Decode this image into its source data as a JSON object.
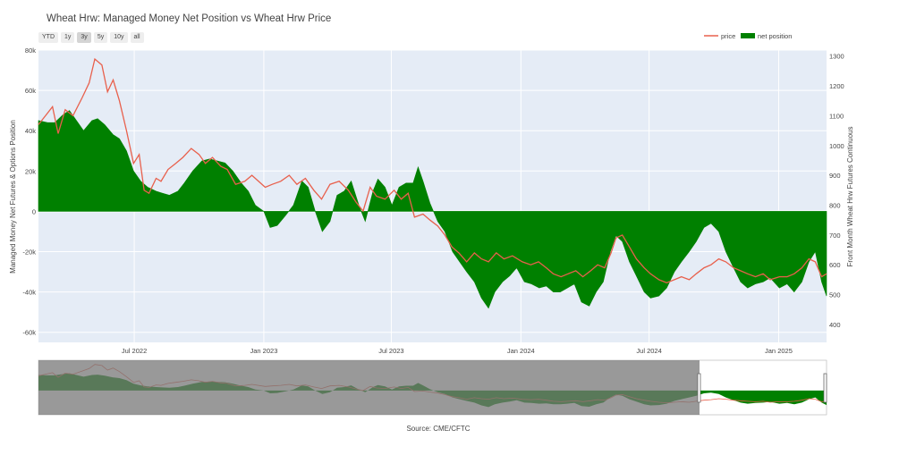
{
  "title": "Wheat Hrw: Managed Money Net Position vs Wheat Hrw Price",
  "range_buttons": [
    {
      "label": "YTD",
      "active": false
    },
    {
      "label": "1y",
      "active": false
    },
    {
      "label": "3y",
      "active": true
    },
    {
      "label": "5y",
      "active": false
    },
    {
      "label": "10y",
      "active": false
    },
    {
      "label": "all",
      "active": false
    }
  ],
  "source": "Source: CME/CFTC",
  "colors": {
    "price": "#e8604c",
    "net_position": "#008000",
    "plot_bg": "#e5ecf6"
  },
  "chart_data": {
    "type": "area",
    "title": "Wheat Hrw: Managed Money Net Position vs Wheat Hrw Price",
    "x_range": [
      "2022-02-15",
      "2025-03-10"
    ],
    "x_ticks": [
      {
        "date": "2022-07-01",
        "label": "Jul 2022"
      },
      {
        "date": "2023-01-01",
        "label": "Jan 2023"
      },
      {
        "date": "2023-07-01",
        "label": "Jul 2023"
      },
      {
        "date": "2024-01-01",
        "label": "Jan 2024"
      },
      {
        "date": "2024-07-01",
        "label": "Jul 2024"
      },
      {
        "date": "2025-01-01",
        "label": "Jan 2025"
      }
    ],
    "y_left": {
      "label": "Managed Money Net Futures & Options Position",
      "range": [
        -65000,
        80000
      ],
      "ticks": [
        {
          "v": 80000,
          "label": "80k"
        },
        {
          "v": 60000,
          "label": "60k"
        },
        {
          "v": 40000,
          "label": "40k"
        },
        {
          "v": 20000,
          "label": "20k"
        },
        {
          "v": 0,
          "label": "0"
        },
        {
          "v": -20000,
          "label": "-20k"
        },
        {
          "v": -40000,
          "label": "-40k"
        },
        {
          "v": -60000,
          "label": "-60k"
        }
      ]
    },
    "y_right": {
      "label": "Front Month Wheat Hrw Futures Continuous",
      "range": [
        340,
        1320
      ],
      "ticks": [
        {
          "v": 1300,
          "label": "1300"
        },
        {
          "v": 1200,
          "label": "1200"
        },
        {
          "v": 1100,
          "label": "1100"
        },
        {
          "v": 1000,
          "label": "1000"
        },
        {
          "v": 900,
          "label": "900"
        },
        {
          "v": 800,
          "label": "800"
        },
        {
          "v": 700,
          "label": "700"
        },
        {
          "v": 600,
          "label": "600"
        },
        {
          "v": 500,
          "label": "500"
        },
        {
          "v": 400,
          "label": "400"
        }
      ]
    },
    "series": [
      {
        "name": "price",
        "axis": "right",
        "points": [
          [
            "2022-02-15",
            1070
          ],
          [
            "2022-02-25",
            1100
          ],
          [
            "2022-03-07",
            1130
          ],
          [
            "2022-03-15",
            1040
          ],
          [
            "2022-03-25",
            1120
          ],
          [
            "2022-04-05",
            1100
          ],
          [
            "2022-04-18",
            1160
          ],
          [
            "2022-04-28",
            1210
          ],
          [
            "2022-05-06",
            1290
          ],
          [
            "2022-05-16",
            1270
          ],
          [
            "2022-05-24",
            1180
          ],
          [
            "2022-06-01",
            1220
          ],
          [
            "2022-06-10",
            1150
          ],
          [
            "2022-06-20",
            1050
          ],
          [
            "2022-06-30",
            940
          ],
          [
            "2022-07-08",
            970
          ],
          [
            "2022-07-15",
            850
          ],
          [
            "2022-07-22",
            840
          ],
          [
            "2022-08-01",
            890
          ],
          [
            "2022-08-08",
            880
          ],
          [
            "2022-08-18",
            920
          ],
          [
            "2022-08-29",
            940
          ],
          [
            "2022-09-08",
            960
          ],
          [
            "2022-09-20",
            990
          ],
          [
            "2022-10-01",
            970
          ],
          [
            "2022-10-10",
            940
          ],
          [
            "2022-10-20",
            960
          ],
          [
            "2022-11-01",
            930
          ],
          [
            "2022-11-10",
            920
          ],
          [
            "2022-11-22",
            870
          ],
          [
            "2022-12-05",
            880
          ],
          [
            "2022-12-15",
            900
          ],
          [
            "2023-01-03",
            860
          ],
          [
            "2023-01-13",
            870
          ],
          [
            "2023-01-25",
            880
          ],
          [
            "2023-02-06",
            900
          ],
          [
            "2023-02-17",
            870
          ],
          [
            "2023-03-01",
            890
          ],
          [
            "2023-03-13",
            850
          ],
          [
            "2023-03-24",
            820
          ],
          [
            "2023-04-05",
            870
          ],
          [
            "2023-04-18",
            880
          ],
          [
            "2023-05-01",
            850
          ],
          [
            "2023-05-12",
            810
          ],
          [
            "2023-05-22",
            780
          ],
          [
            "2023-06-01",
            860
          ],
          [
            "2023-06-10",
            830
          ],
          [
            "2023-06-22",
            820
          ],
          [
            "2023-07-05",
            850
          ],
          [
            "2023-07-15",
            820
          ],
          [
            "2023-07-25",
            840
          ],
          [
            "2023-08-03",
            760
          ],
          [
            "2023-08-15",
            770
          ],
          [
            "2023-08-25",
            750
          ],
          [
            "2023-09-05",
            730
          ],
          [
            "2023-09-15",
            700
          ],
          [
            "2023-09-25",
            660
          ],
          [
            "2023-10-05",
            640
          ],
          [
            "2023-10-16",
            610
          ],
          [
            "2023-10-27",
            640
          ],
          [
            "2023-11-06",
            620
          ],
          [
            "2023-11-16",
            610
          ],
          [
            "2023-11-27",
            640
          ],
          [
            "2023-12-08",
            620
          ],
          [
            "2023-12-20",
            630
          ],
          [
            "2024-01-03",
            610
          ],
          [
            "2024-01-15",
            600
          ],
          [
            "2024-01-26",
            610
          ],
          [
            "2024-02-06",
            590
          ],
          [
            "2024-02-16",
            570
          ],
          [
            "2024-02-27",
            560
          ],
          [
            "2024-03-08",
            570
          ],
          [
            "2024-03-19",
            580
          ],
          [
            "2024-03-29",
            560
          ],
          [
            "2024-04-09",
            580
          ],
          [
            "2024-04-19",
            600
          ],
          [
            "2024-04-29",
            590
          ],
          [
            "2024-05-08",
            640
          ],
          [
            "2024-05-15",
            690
          ],
          [
            "2024-05-24",
            700
          ],
          [
            "2024-06-03",
            660
          ],
          [
            "2024-06-13",
            620
          ],
          [
            "2024-06-24",
            590
          ],
          [
            "2024-07-03",
            570
          ],
          [
            "2024-07-15",
            550
          ],
          [
            "2024-07-26",
            540
          ],
          [
            "2024-08-06",
            550
          ],
          [
            "2024-08-16",
            560
          ],
          [
            "2024-08-27",
            550
          ],
          [
            "2024-09-06",
            570
          ],
          [
            "2024-09-17",
            590
          ],
          [
            "2024-09-27",
            600
          ],
          [
            "2024-10-08",
            620
          ],
          [
            "2024-10-18",
            610
          ],
          [
            "2024-10-29",
            590
          ],
          [
            "2024-11-08",
            580
          ],
          [
            "2024-11-18",
            570
          ],
          [
            "2024-11-29",
            560
          ],
          [
            "2024-12-10",
            570
          ],
          [
            "2024-12-20",
            550
          ],
          [
            "2025-01-02",
            560
          ],
          [
            "2025-01-13",
            560
          ],
          [
            "2025-01-23",
            570
          ],
          [
            "2025-02-03",
            590
          ],
          [
            "2025-02-13",
            620
          ],
          [
            "2025-02-22",
            610
          ],
          [
            "2025-03-03",
            560
          ],
          [
            "2025-03-10",
            570
          ]
        ]
      },
      {
        "name": "net position",
        "axis": "left",
        "points": [
          [
            "2022-02-15",
            45000
          ],
          [
            "2022-02-28",
            44000
          ],
          [
            "2022-03-10",
            44000
          ],
          [
            "2022-03-22",
            48000
          ],
          [
            "2022-03-31",
            50000
          ],
          [
            "2022-04-10",
            45000
          ],
          [
            "2022-04-20",
            40000
          ],
          [
            "2022-05-02",
            45000
          ],
          [
            "2022-05-10",
            46000
          ],
          [
            "2022-05-20",
            43000
          ],
          [
            "2022-06-01",
            38000
          ],
          [
            "2022-06-10",
            36000
          ],
          [
            "2022-06-20",
            30000
          ],
          [
            "2022-06-30",
            20000
          ],
          [
            "2022-07-10",
            15000
          ],
          [
            "2022-07-20",
            12000
          ],
          [
            "2022-08-01",
            10000
          ],
          [
            "2022-08-10",
            9000
          ],
          [
            "2022-08-20",
            8000
          ],
          [
            "2022-09-01",
            10000
          ],
          [
            "2022-09-10",
            14000
          ],
          [
            "2022-09-22",
            20000
          ],
          [
            "2022-10-05",
            25000
          ],
          [
            "2022-10-16",
            26000
          ],
          [
            "2022-10-27",
            25000
          ],
          [
            "2022-11-07",
            24000
          ],
          [
            "2022-11-18",
            20000
          ],
          [
            "2022-11-30",
            14000
          ],
          [
            "2022-12-10",
            10000
          ],
          [
            "2022-12-20",
            3000
          ],
          [
            "2023-01-01",
            0
          ],
          [
            "2023-01-10",
            -8000
          ],
          [
            "2023-01-20",
            -7000
          ],
          [
            "2023-02-01",
            -2000
          ],
          [
            "2023-02-12",
            3000
          ],
          [
            "2023-02-24",
            15000
          ],
          [
            "2023-03-05",
            12000
          ],
          [
            "2023-03-15",
            0
          ],
          [
            "2023-03-25",
            -10000
          ],
          [
            "2023-04-05",
            -5000
          ],
          [
            "2023-04-15",
            8000
          ],
          [
            "2023-04-25",
            10000
          ],
          [
            "2023-05-05",
            15000
          ],
          [
            "2023-05-16",
            3000
          ],
          [
            "2023-05-25",
            -5000
          ],
          [
            "2023-06-05",
            10000
          ],
          [
            "2023-06-12",
            16000
          ],
          [
            "2023-06-22",
            12000
          ],
          [
            "2023-07-02",
            3000
          ],
          [
            "2023-07-12",
            12000
          ],
          [
            "2023-07-22",
            14000
          ],
          [
            "2023-08-01",
            14000
          ],
          [
            "2023-08-08",
            22000
          ],
          [
            "2023-08-15",
            15000
          ],
          [
            "2023-08-25",
            4000
          ],
          [
            "2023-09-05",
            -5000
          ],
          [
            "2023-09-15",
            -10000
          ],
          [
            "2023-09-26",
            -20000
          ],
          [
            "2023-10-06",
            -25000
          ],
          [
            "2023-10-16",
            -30000
          ],
          [
            "2023-10-27",
            -35000
          ],
          [
            "2023-11-06",
            -43000
          ],
          [
            "2023-11-16",
            -48000
          ],
          [
            "2023-11-25",
            -40000
          ],
          [
            "2023-12-06",
            -35000
          ],
          [
            "2023-12-16",
            -32000
          ],
          [
            "2023-12-26",
            -28000
          ],
          [
            "2024-01-06",
            -35000
          ],
          [
            "2024-01-16",
            -36000
          ],
          [
            "2024-01-27",
            -38000
          ],
          [
            "2024-02-06",
            -37000
          ],
          [
            "2024-02-16",
            -40000
          ],
          [
            "2024-02-26",
            -40000
          ],
          [
            "2024-03-07",
            -38000
          ],
          [
            "2024-03-17",
            -36000
          ],
          [
            "2024-03-27",
            -45000
          ],
          [
            "2024-04-07",
            -47000
          ],
          [
            "2024-04-17",
            -40000
          ],
          [
            "2024-04-27",
            -35000
          ],
          [
            "2024-05-07",
            -20000
          ],
          [
            "2024-05-15",
            -12000
          ],
          [
            "2024-05-24",
            -15000
          ],
          [
            "2024-06-03",
            -25000
          ],
          [
            "2024-06-13",
            -32000
          ],
          [
            "2024-06-24",
            -40000
          ],
          [
            "2024-07-03",
            -43000
          ],
          [
            "2024-07-15",
            -42000
          ],
          [
            "2024-07-26",
            -38000
          ],
          [
            "2024-08-06",
            -30000
          ],
          [
            "2024-08-16",
            -25000
          ],
          [
            "2024-08-27",
            -20000
          ],
          [
            "2024-09-06",
            -15000
          ],
          [
            "2024-09-17",
            -8000
          ],
          [
            "2024-09-27",
            -6000
          ],
          [
            "2024-10-08",
            -10000
          ],
          [
            "2024-10-18",
            -20000
          ],
          [
            "2024-10-29",
            -28000
          ],
          [
            "2024-11-08",
            -35000
          ],
          [
            "2024-11-18",
            -38000
          ],
          [
            "2024-11-29",
            -36000
          ],
          [
            "2024-12-10",
            -35000
          ],
          [
            "2024-12-20",
            -33000
          ],
          [
            "2025-01-02",
            -38000
          ],
          [
            "2025-01-13",
            -36000
          ],
          [
            "2025-01-23",
            -40000
          ],
          [
            "2025-02-03",
            -35000
          ],
          [
            "2025-02-13",
            -25000
          ],
          [
            "2025-02-22",
            -20000
          ],
          [
            "2025-03-03",
            -35000
          ],
          [
            "2025-03-10",
            -42000
          ]
        ]
      }
    ],
    "legend": {
      "placement": "top-right",
      "entries": [
        "price",
        "net position"
      ]
    },
    "grid": true,
    "range_slider": {
      "shown": true,
      "visible_window": [
        "2022-02-15",
        "2025-03-10"
      ]
    }
  }
}
